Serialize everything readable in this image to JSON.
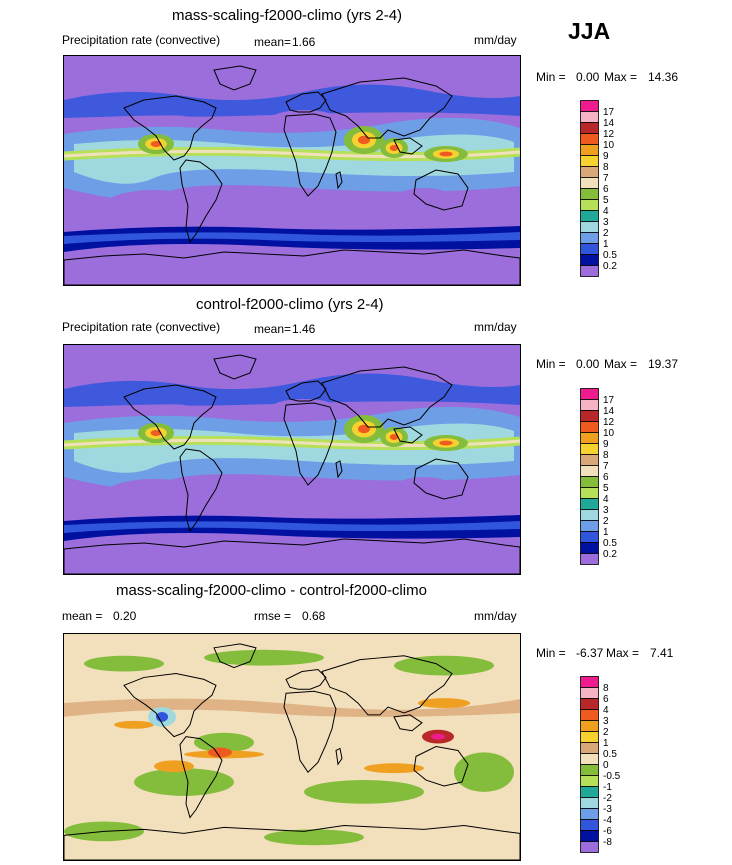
{
  "season": "JJA",
  "chart_data": [
    {
      "type": "heatmap",
      "title": "mass-scaling-f2000-climo (yrs 2-4)",
      "left_label": "Precipitation rate (convective)",
      "mean_label": "mean=",
      "mean_value": "1.66",
      "units": "mm/day",
      "min_label": "Min =",
      "min_value": "0.00",
      "max_label": "Max =",
      "max_value": "14.36",
      "levels": [
        "17",
        "14",
        "12",
        "10",
        "9",
        "8",
        "7",
        "6",
        "5",
        "4",
        "3",
        "2",
        "1",
        "0.5",
        "0.2"
      ],
      "colors": [
        "#ee1c8c",
        "#f4b4c6",
        "#b82828",
        "#f05a1e",
        "#f0a020",
        "#f6d230",
        "#d9a878",
        "#f2e0bc",
        "#84bc3c",
        "#b6e05a",
        "#22a898",
        "#a0d8e0",
        "#6e9ee6",
        "#2f56dc",
        "#0010a0",
        "#9b6edc"
      ]
    },
    {
      "type": "heatmap",
      "title": "control-f2000-climo (yrs 2-4)",
      "left_label": "Precipitation rate (convective)",
      "mean_label": "mean=",
      "mean_value": "1.46",
      "units": "mm/day",
      "min_label": "Min =",
      "min_value": "0.00",
      "max_label": "Max =",
      "max_value": "19.37",
      "levels": [
        "17",
        "14",
        "12",
        "10",
        "9",
        "8",
        "7",
        "6",
        "5",
        "4",
        "3",
        "2",
        "1",
        "0.5",
        "0.2"
      ],
      "colors": [
        "#ee1c8c",
        "#f4b4c6",
        "#b82828",
        "#f05a1e",
        "#f0a020",
        "#f6d230",
        "#d9a878",
        "#f2e0bc",
        "#84bc3c",
        "#b6e05a",
        "#22a898",
        "#a0d8e0",
        "#6e9ee6",
        "#2f56dc",
        "#0010a0",
        "#9b6edc"
      ]
    },
    {
      "type": "heatmap",
      "title": "mass-scaling-f2000-climo - control-f2000-climo",
      "left_label": "mean =",
      "mean_label": "rmse =",
      "left_value": "0.20",
      "mean_value": "0.68",
      "units": "mm/day",
      "min_label": "Min =",
      "min_value": "-6.37",
      "max_label": "Max =",
      "max_value": "7.41",
      "levels": [
        "8",
        "6",
        "4",
        "3",
        "2",
        "1",
        "0.5",
        "0",
        "-0.5",
        "-1",
        "-2",
        "-3",
        "-4",
        "-6",
        "-8"
      ],
      "colors": [
        "#ee1c8c",
        "#f4b4c6",
        "#b82828",
        "#f05a1e",
        "#f0a020",
        "#f6d230",
        "#d9a878",
        "#f2e0bc",
        "#84bc3c",
        "#b6e05a",
        "#22a898",
        "#a0d8e0",
        "#6e9ee6",
        "#2f56dc",
        "#0010a0",
        "#9b6edc"
      ]
    }
  ]
}
